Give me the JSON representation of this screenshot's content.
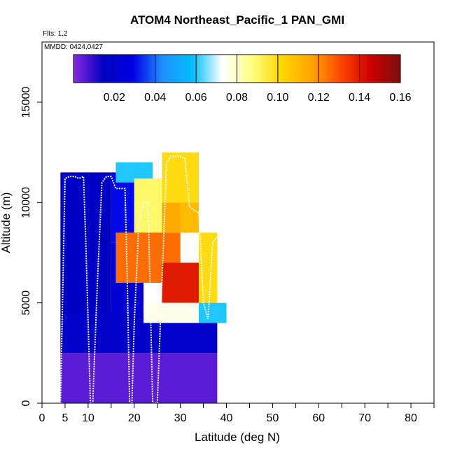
{
  "chart_data": {
    "type": "heatmap",
    "title": "ATOM4 Northeast_Pacific_1 PAN_GMI",
    "annotations": [
      "Flts: 1,2",
      "MMDD: 0424,0427"
    ],
    "xlabel": "Latitude (deg N)",
    "ylabel": "Altitude (m)",
    "xlim": [
      0,
      85
    ],
    "ylim": [
      0,
      18000
    ],
    "x_ticks": [
      0,
      5,
      10,
      20,
      30,
      40,
      50,
      60,
      70,
      80
    ],
    "x_minor_ticks": [
      15,
      25,
      35,
      45,
      55,
      65,
      75,
      85
    ],
    "y_ticks": [
      0,
      5000,
      10000,
      15000
    ],
    "colorbar": {
      "min": 0.0,
      "max": 0.16,
      "tick_values": [
        0.02,
        0.04,
        0.06,
        0.08,
        0.1,
        0.12,
        0.14,
        0.16
      ],
      "tick_labels": [
        "0.02",
        "0.04",
        "0.06",
        "0.08",
        "0.10",
        "0.12",
        "0.14",
        "0.16"
      ],
      "colors": [
        "#8a2be2",
        "#0000c0",
        "#0000e6",
        "#1e90ff",
        "#00bfff",
        "#ffffff",
        "#ffff80",
        "#ffd700",
        "#ffa500",
        "#ff4500",
        "#cc0000",
        "#7a1010"
      ]
    },
    "regions": [
      {
        "x": [
          4,
          38
        ],
        "y": [
          0,
          2500
        ],
        "value": 0.005
      },
      {
        "x": [
          4,
          38
        ],
        "y": [
          2500,
          4500
        ],
        "value": 0.018
      },
      {
        "x": [
          4,
          15
        ],
        "y": [
          4500,
          11500
        ],
        "value": 0.016
      },
      {
        "x": [
          15,
          22
        ],
        "y": [
          4500,
          8000
        ],
        "value": 0.022
      },
      {
        "x": [
          15,
          20
        ],
        "y": [
          8000,
          11500
        ],
        "value": 0.03
      },
      {
        "x": [
          16,
          24
        ],
        "y": [
          11000,
          12000
        ],
        "value": 0.06
      },
      {
        "x": [
          20,
          26
        ],
        "y": [
          8000,
          11200
        ],
        "value": 0.09
      },
      {
        "x": [
          16,
          30
        ],
        "y": [
          6000,
          8500
        ],
        "value": 0.125
      },
      {
        "x": [
          26,
          32
        ],
        "y": [
          8500,
          10000
        ],
        "value": 0.115
      },
      {
        "x": [
          26,
          34
        ],
        "y": [
          10000,
          12500
        ],
        "value": 0.1
      },
      {
        "x": [
          30,
          34
        ],
        "y": [
          8500,
          10000
        ],
        "value": 0.11
      },
      {
        "x": [
          26,
          34
        ],
        "y": [
          5000,
          7000
        ],
        "value": 0.14
      },
      {
        "x": [
          34,
          38
        ],
        "y": [
          5000,
          8500
        ],
        "value": 0.1
      },
      {
        "x": [
          34,
          40
        ],
        "y": [
          4000,
          5000
        ],
        "value": 0.06
      },
      {
        "x": [
          22,
          34
        ],
        "y": [
          4000,
          5000
        ],
        "value": 0.075
      }
    ],
    "flight_track": {
      "lat": [
        4,
        5,
        6,
        7,
        8,
        9,
        9.5,
        10,
        10.5,
        11,
        12,
        13,
        14,
        15,
        16,
        17,
        18,
        18.5,
        19,
        19.5,
        20,
        21,
        22,
        23,
        24,
        25,
        26,
        27,
        28,
        29,
        30,
        31,
        32,
        33,
        34,
        35,
        36,
        37,
        38
      ],
      "alt": [
        0,
        11200,
        11300,
        11300,
        11200,
        11300,
        8000,
        4000,
        0,
        0,
        6000,
        11000,
        11300,
        11300,
        10700,
        10700,
        10700,
        6000,
        0,
        0,
        4000,
        9000,
        10000,
        10000,
        0,
        0,
        6000,
        12000,
        12300,
        12300,
        12300,
        12200,
        9800,
        9600,
        9500,
        5000,
        4200,
        8000,
        8300
      ]
    }
  }
}
